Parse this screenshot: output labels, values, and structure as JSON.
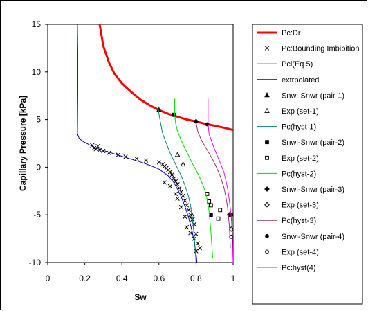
{
  "chart_data": {
    "type": "scatter",
    "xlabel": "Sw",
    "ylabel": "Capillary Pressure [kPa]",
    "xlim": [
      0,
      1
    ],
    "ylim": [
      -10,
      15
    ],
    "xticks": [
      "0",
      "0.2",
      "0.4",
      "0.6",
      "0.8",
      "1"
    ],
    "yticks": [
      "15",
      "10",
      "5",
      "0",
      "-5",
      "-10"
    ],
    "grid": false,
    "legend_position": "right",
    "series": [
      {
        "name": "Pc:Dr",
        "kind": "line",
        "color": "#ff0000",
        "width": 3,
        "x": [
          0.28,
          0.3,
          0.33,
          0.36,
          0.4,
          0.45,
          0.5,
          0.55,
          0.6,
          0.65,
          0.7,
          0.75,
          0.8,
          0.85,
          0.9,
          0.95,
          1.0
        ],
        "y": [
          15,
          12.7,
          11.0,
          9.8,
          8.8,
          7.9,
          7.1,
          6.5,
          6.0,
          5.6,
          5.3,
          5.0,
          4.8,
          4.55,
          4.35,
          4.15,
          3.9
        ]
      },
      {
        "name": "Pc:Bounding Imbibition",
        "kind": "marker",
        "marker": "x",
        "color": "#000000",
        "x": [
          0.24,
          0.25,
          0.26,
          0.27,
          0.28,
          0.3,
          0.33,
          0.38,
          0.42,
          0.48,
          0.53,
          0.6,
          0.62,
          0.63,
          0.64,
          0.65,
          0.66,
          0.67,
          0.68,
          0.69,
          0.7,
          0.71,
          0.72,
          0.73,
          0.74,
          0.75,
          0.76,
          0.77,
          0.78,
          0.79,
          0.8,
          0.81,
          0.82,
          0.63,
          0.66,
          0.69,
          0.7,
          0.72,
          0.74,
          0.75,
          0.77,
          0.79,
          0.8
        ],
        "y": [
          2.3,
          2.0,
          1.9,
          2.2,
          1.8,
          1.7,
          1.5,
          1.3,
          1.1,
          0.9,
          0.7,
          0.5,
          0.3,
          0.1,
          -0.1,
          -0.3,
          -0.5,
          -0.8,
          -1.2,
          -1.5,
          -1.8,
          -2.2,
          -2.6,
          -3.0,
          -3.5,
          -4.0,
          -4.5,
          -5.0,
          -5.5,
          -6.0,
          -7.0,
          -8.0,
          -8.5,
          -1.6,
          -2.0,
          -2.8,
          -3.3,
          -4.2,
          -5.2,
          -6.3,
          -6.9,
          -7.5,
          -8.8
        ]
      },
      {
        "name": "Pcl(Eq.5)",
        "kind": "line",
        "color": "#0000aa",
        "width": 1,
        "x": [
          0.16,
          0.17,
          0.19,
          0.22,
          0.25,
          0.3,
          0.35,
          0.4,
          0.45,
          0.5,
          0.55,
          0.6,
          0.65,
          0.68,
          0.7,
          0.72,
          0.74,
          0.76,
          0.78,
          0.79,
          0.8,
          0.805
        ],
        "y": [
          3.5,
          3.0,
          2.7,
          2.4,
          2.1,
          1.75,
          1.45,
          1.15,
          0.85,
          0.55,
          0.2,
          -0.2,
          -0.9,
          -1.6,
          -2.3,
          -3.1,
          -4.1,
          -5.3,
          -6.8,
          -7.8,
          -9.0,
          -10
        ]
      },
      {
        "name": "extrpolated",
        "kind": "line",
        "color": "#0000aa",
        "width": 1,
        "x": [
          0.16,
          0.162,
          0.162,
          0.161,
          0.16
        ],
        "y": [
          15,
          12,
          8,
          5,
          3.5
        ]
      },
      {
        "name": "Snwi-Snwr (pair-1)",
        "kind": "marker",
        "marker": "triangle",
        "color": "#000000",
        "x": [
          0.6
        ],
        "y": [
          6.0
        ]
      },
      {
        "name": "Exp (set-1)",
        "kind": "marker",
        "marker": "triangle-open",
        "color": "#000000",
        "x": [
          0.7,
          0.73,
          0.78
        ],
        "y": [
          1.3,
          0.3,
          -5.1
        ]
      },
      {
        "name": "Pc(hyst-1)",
        "kind": "line",
        "color": "#008080",
        "width": 1,
        "x": [
          0.595,
          0.6,
          0.61,
          0.62,
          0.64,
          0.66,
          0.68,
          0.7,
          0.72,
          0.74,
          0.76,
          0.77,
          0.78,
          0.79,
          0.8
        ],
        "y": [
          6.5,
          5.6,
          4.5,
          3.5,
          2.5,
          1.5,
          0.7,
          -0.1,
          -0.9,
          -1.9,
          -3.1,
          -4.0,
          -5.3,
          -7.1,
          -10
        ]
      },
      {
        "name": "Snwi-Snwr (pair-2)",
        "kind": "marker",
        "marker": "square",
        "color": "#000000",
        "x": [
          0.68,
          0.88
        ],
        "y": [
          5.5,
          -5.0
        ]
      },
      {
        "name": "Exp (set-2)",
        "kind": "marker",
        "marker": "square-open",
        "color": "#000000",
        "x": [
          0.86,
          0.87,
          0.88,
          0.92,
          0.93
        ],
        "y": [
          -2.8,
          -3.6,
          -4.0,
          -5.4,
          -4.5
        ]
      },
      {
        "name": "Pc(hyst-2)",
        "kind": "line",
        "color": "#00dd00",
        "width": 1,
        "x": [
          0.685,
          0.685,
          0.69,
          0.7,
          0.72,
          0.74,
          0.76,
          0.78,
          0.8,
          0.82,
          0.84,
          0.85,
          0.86,
          0.87,
          0.88,
          0.89
        ],
        "y": [
          7.2,
          5.5,
          4.6,
          3.8,
          2.8,
          2.0,
          1.2,
          0.4,
          -0.3,
          -1.1,
          -2.0,
          -2.6,
          -3.4,
          -4.6,
          -6.7,
          -9.5
        ]
      },
      {
        "name": "Snwi-Snwr (pair-3)",
        "kind": "marker",
        "marker": "diamond",
        "color": "#000000",
        "x": [
          0.8,
          0.98
        ],
        "y": [
          4.8,
          -5.0
        ]
      },
      {
        "name": "Exp (set-3)",
        "kind": "marker",
        "marker": "diamond-open",
        "color": "#000000",
        "x": [
          0.99
        ],
        "y": [
          -6.5
        ]
      },
      {
        "name": "Pc(hyst-3)",
        "kind": "line",
        "color": "#993366",
        "width": 1,
        "x": [
          0.8,
          0.8,
          0.81,
          0.83,
          0.86,
          0.89,
          0.91,
          0.93,
          0.95,
          0.96,
          0.97,
          0.98,
          0.985
        ],
        "y": [
          5.6,
          4.7,
          3.7,
          2.8,
          1.8,
          0.8,
          0.0,
          -0.9,
          -2.1,
          -3.0,
          -4.2,
          -6.2,
          -8.5
        ]
      },
      {
        "name": "Snwi-Snwr (pair-4)",
        "kind": "marker",
        "marker": "circle",
        "color": "#000000",
        "x": [
          0.86,
          0.99
        ],
        "y": [
          4.5,
          -5.0
        ]
      },
      {
        "name": "Exp (set-4)",
        "kind": "marker",
        "marker": "circle-open",
        "color": "#000000",
        "x": [
          0.99
        ],
        "y": [
          -7.3
        ]
      },
      {
        "name": "Pc:hyst(4)",
        "kind": "line",
        "color": "#ff00ff",
        "width": 1,
        "x": [
          0.865,
          0.865,
          0.87,
          0.89,
          0.91,
          0.93,
          0.95,
          0.96,
          0.97,
          0.98,
          0.99,
          0.995,
          1.0
        ],
        "y": [
          7.3,
          4.5,
          3.5,
          2.4,
          1.4,
          0.5,
          -0.5,
          -1.3,
          -2.2,
          -3.5,
          -5.2,
          -7.0,
          -10
        ]
      }
    ]
  }
}
